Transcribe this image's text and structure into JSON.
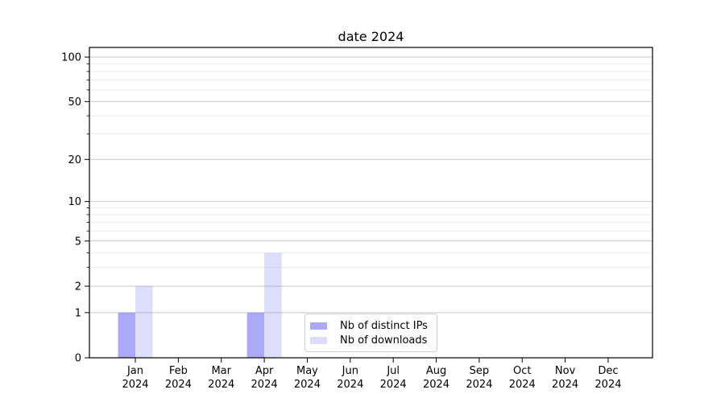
{
  "chart_data": {
    "type": "bar",
    "title": "date 2024",
    "categories": [
      "Jan 2024",
      "Feb 2024",
      "Mar 2024",
      "Apr 2024",
      "May 2024",
      "Jun 2024",
      "Jul 2024",
      "Aug 2024",
      "Sep 2024",
      "Oct 2024",
      "Nov 2024",
      "Dec 2024"
    ],
    "category_line1": [
      "Jan",
      "Feb",
      "Mar",
      "Apr",
      "May",
      "Jun",
      "Jul",
      "Aug",
      "Sep",
      "Oct",
      "Nov",
      "Dec"
    ],
    "category_line2": "2024",
    "series": [
      {
        "name": "Nb of distinct IPs",
        "color": "rgba(100,100,240,0.55)",
        "swatch_color": "#aaaaf6",
        "values": [
          1,
          0,
          0,
          1,
          0,
          0,
          0,
          0,
          0,
          0,
          0,
          0
        ]
      },
      {
        "name": "Nb of downloads",
        "color": "rgba(100,100,240,0.22)",
        "swatch_color": "#dcdcfa",
        "values": [
          2,
          0,
          0,
          4,
          0,
          0,
          0,
          0,
          0,
          0,
          0,
          0
        ]
      }
    ],
    "xlabel": "",
    "ylabel": "",
    "y_scale": "log1p",
    "y_ticks": [
      0,
      1,
      2,
      5,
      10,
      20,
      50,
      100
    ],
    "y_tick_labels": [
      "0",
      "1",
      "2",
      "5",
      "10",
      "20",
      "50",
      "100"
    ],
    "y_minor_ticks": [
      3,
      4,
      6,
      7,
      8,
      9,
      30,
      40,
      60,
      70,
      80,
      90
    ],
    "ylim": [
      0,
      115
    ],
    "grid": true,
    "legend_position": "lower center"
  },
  "colors": {
    "background": "#ffffff",
    "spine": "#000000",
    "tick": "#000000",
    "major_grid": "#c9c9c9",
    "minor_grid": "#ebebeb",
    "text": "#000000",
    "legend_border": "#cccccc"
  }
}
